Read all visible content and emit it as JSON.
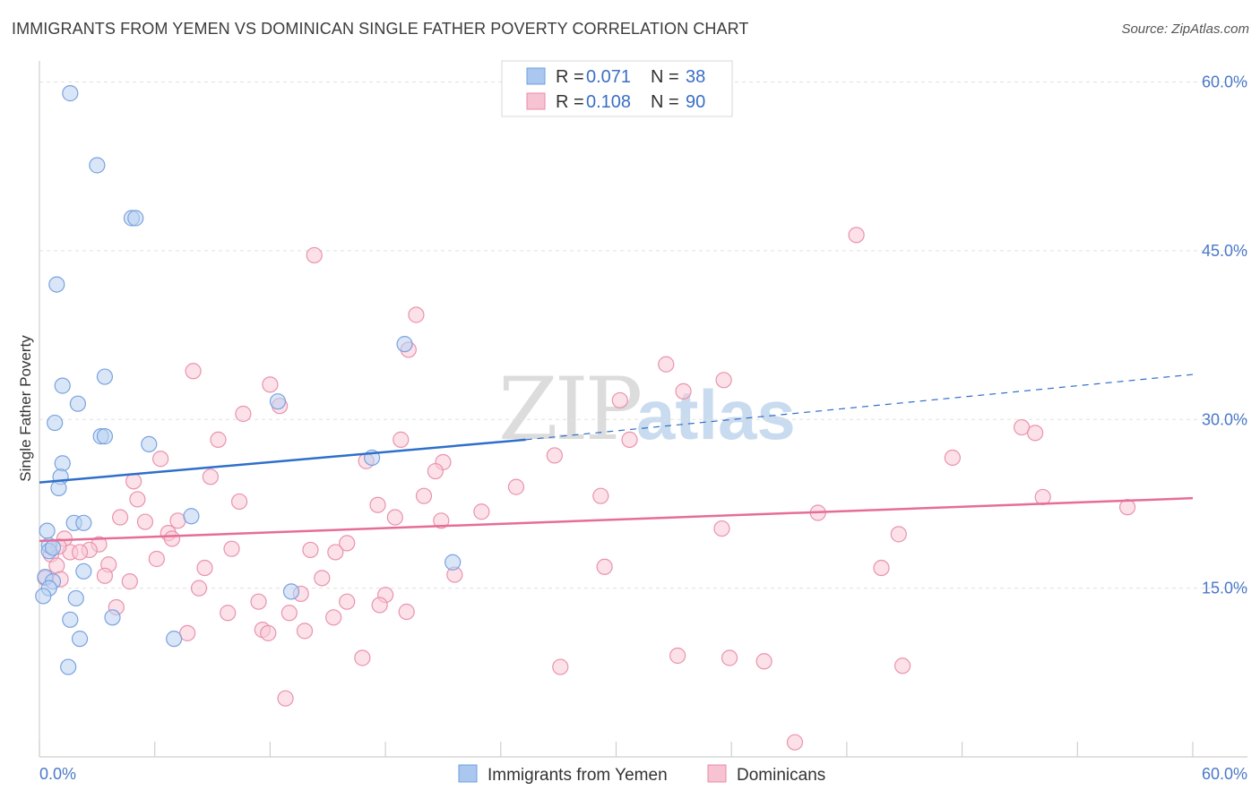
{
  "title": "IMMIGRANTS FROM YEMEN VS DOMINICAN SINGLE FATHER POVERTY CORRELATION CHART",
  "source": "Source: ZipAtlas.com",
  "watermark": {
    "part1": "ZIP",
    "part2": "atlas"
  },
  "legend": {
    "rows": [
      {
        "r_label": "R =",
        "r_value": "0.071",
        "n_label": "N =",
        "n_value": "38",
        "color": "#a9c7ef",
        "stroke": "#6f9fdc"
      },
      {
        "r_label": "R =",
        "r_value": "0.108",
        "n_label": "N =",
        "n_value": "90",
        "color": "#f7c3d2",
        "stroke": "#e98aa8"
      }
    ]
  },
  "bottom_legend": [
    {
      "label": "Immigrants from Yemen",
      "color": "#a9c7ef",
      "stroke": "#6f9fdc"
    },
    {
      "label": "Dominicans",
      "color": "#f7c3d2",
      "stroke": "#e98aa8"
    }
  ],
  "colors": {
    "blue_fill": "#b9d1f2",
    "blue_stroke": "#7aa3de",
    "blue_line": "#2e6fc9",
    "pink_fill": "#f9c9d7",
    "pink_stroke": "#e993ae",
    "pink_line": "#e66d97",
    "grid": "#e0e0e0",
    "tick_label": "#4a78c8"
  },
  "chart_data": {
    "type": "scatter",
    "title": "IMMIGRANTS FROM YEMEN VS DOMINICAN SINGLE FATHER POVERTY CORRELATION CHART",
    "xlabel": "",
    "ylabel": "Single Father Poverty",
    "xlim": [
      0,
      60
    ],
    "ylim": [
      0,
      61
    ],
    "x_tick_labels": [
      "0.0%",
      "60.0%"
    ],
    "y_ticks": [
      15,
      30,
      45,
      60
    ],
    "y_tick_labels": [
      "15.0%",
      "30.0%",
      "45.0%",
      "60.0%"
    ],
    "grid": true,
    "legend_position": "top-center",
    "series": [
      {
        "name": "Immigrants from Yemen",
        "points": [
          [
            1.6,
            59.0
          ],
          [
            3.0,
            52.6
          ],
          [
            4.8,
            47.9
          ],
          [
            5.0,
            47.9
          ],
          [
            0.9,
            42.0
          ],
          [
            3.4,
            33.8
          ],
          [
            1.2,
            33.0
          ],
          [
            2.0,
            31.4
          ],
          [
            12.4,
            31.6
          ],
          [
            19.0,
            36.7
          ],
          [
            0.8,
            29.7
          ],
          [
            3.2,
            28.5
          ],
          [
            3.4,
            28.5
          ],
          [
            5.7,
            27.8
          ],
          [
            17.3,
            26.6
          ],
          [
            1.2,
            26.1
          ],
          [
            1.1,
            24.9
          ],
          [
            1.0,
            23.9
          ],
          [
            7.9,
            21.4
          ],
          [
            1.8,
            20.8
          ],
          [
            2.3,
            20.8
          ],
          [
            0.4,
            20.1
          ],
          [
            0.5,
            18.8
          ],
          [
            0.5,
            18.3
          ],
          [
            2.3,
            16.5
          ],
          [
            0.3,
            16.0
          ],
          [
            0.7,
            15.6
          ],
          [
            0.5,
            15.0
          ],
          [
            0.2,
            14.3
          ],
          [
            1.9,
            14.1
          ],
          [
            13.1,
            14.7
          ],
          [
            21.5,
            17.3
          ],
          [
            3.8,
            12.4
          ],
          [
            1.6,
            12.2
          ],
          [
            7.0,
            10.5
          ],
          [
            2.1,
            10.5
          ],
          [
            1.5,
            8.0
          ],
          [
            0.7,
            18.6
          ]
        ],
        "trend": {
          "x0": 0,
          "y0": 24.4,
          "x1": 25.3,
          "y1": 28.2,
          "dash_to_x": 60,
          "dash_to_y": 34.0
        }
      },
      {
        "name": "Dominicans",
        "points": [
          [
            14.3,
            44.6
          ],
          [
            42.5,
            46.4
          ],
          [
            19.6,
            39.3
          ],
          [
            19.2,
            36.2
          ],
          [
            8.0,
            34.3
          ],
          [
            32.6,
            34.9
          ],
          [
            35.6,
            33.5
          ],
          [
            12.0,
            33.1
          ],
          [
            33.5,
            32.5
          ],
          [
            12.5,
            31.2
          ],
          [
            10.6,
            30.5
          ],
          [
            30.2,
            31.7
          ],
          [
            51.1,
            29.3
          ],
          [
            51.8,
            28.8
          ],
          [
            9.3,
            28.2
          ],
          [
            18.8,
            28.2
          ],
          [
            30.7,
            28.2
          ],
          [
            6.3,
            26.5
          ],
          [
            17.0,
            26.3
          ],
          [
            21.0,
            26.2
          ],
          [
            26.8,
            26.8
          ],
          [
            47.5,
            26.6
          ],
          [
            20.6,
            25.4
          ],
          [
            8.9,
            24.9
          ],
          [
            4.9,
            24.5
          ],
          [
            24.8,
            24.0
          ],
          [
            5.1,
            22.9
          ],
          [
            10.4,
            22.7
          ],
          [
            17.6,
            22.4
          ],
          [
            20.0,
            23.2
          ],
          [
            29.2,
            23.2
          ],
          [
            23.0,
            21.8
          ],
          [
            40.5,
            21.7
          ],
          [
            52.2,
            23.1
          ],
          [
            56.6,
            22.2
          ],
          [
            4.2,
            21.3
          ],
          [
            5.5,
            20.9
          ],
          [
            7.2,
            21.0
          ],
          [
            18.5,
            21.3
          ],
          [
            20.9,
            21.0
          ],
          [
            35.5,
            20.3
          ],
          [
            6.7,
            19.9
          ],
          [
            1.3,
            19.4
          ],
          [
            6.9,
            19.4
          ],
          [
            3.1,
            18.9
          ],
          [
            16.0,
            19.0
          ],
          [
            44.7,
            19.8
          ],
          [
            10.0,
            18.5
          ],
          [
            2.6,
            18.4
          ],
          [
            1.6,
            18.2
          ],
          [
            2.1,
            18.2
          ],
          [
            14.1,
            18.4
          ],
          [
            15.4,
            18.2
          ],
          [
            1.0,
            18.7
          ],
          [
            0.6,
            18.0
          ],
          [
            6.1,
            17.6
          ],
          [
            3.6,
            17.1
          ],
          [
            8.6,
            16.8
          ],
          [
            0.9,
            17.0
          ],
          [
            29.4,
            16.9
          ],
          [
            43.8,
            16.8
          ],
          [
            3.4,
            16.1
          ],
          [
            1.1,
            15.8
          ],
          [
            0.3,
            15.9
          ],
          [
            4.7,
            15.6
          ],
          [
            14.7,
            15.9
          ],
          [
            21.6,
            16.2
          ],
          [
            8.3,
            15.0
          ],
          [
            13.6,
            14.5
          ],
          [
            18.0,
            14.4
          ],
          [
            11.4,
            13.8
          ],
          [
            16.0,
            13.8
          ],
          [
            4.0,
            13.3
          ],
          [
            17.7,
            13.5
          ],
          [
            9.8,
            12.8
          ],
          [
            13.0,
            12.8
          ],
          [
            19.1,
            12.9
          ],
          [
            15.3,
            12.4
          ],
          [
            11.6,
            11.3
          ],
          [
            7.7,
            11.0
          ],
          [
            11.9,
            11.0
          ],
          [
            13.8,
            11.2
          ],
          [
            16.8,
            8.8
          ],
          [
            27.1,
            8.0
          ],
          [
            33.2,
            9.0
          ],
          [
            35.9,
            8.8
          ],
          [
            37.7,
            8.5
          ],
          [
            44.9,
            8.1
          ],
          [
            12.8,
            5.2
          ],
          [
            39.3,
            1.3
          ]
        ],
        "trend": {
          "x0": 0,
          "y0": 19.2,
          "x1": 60,
          "y1": 23.0
        }
      }
    ]
  }
}
